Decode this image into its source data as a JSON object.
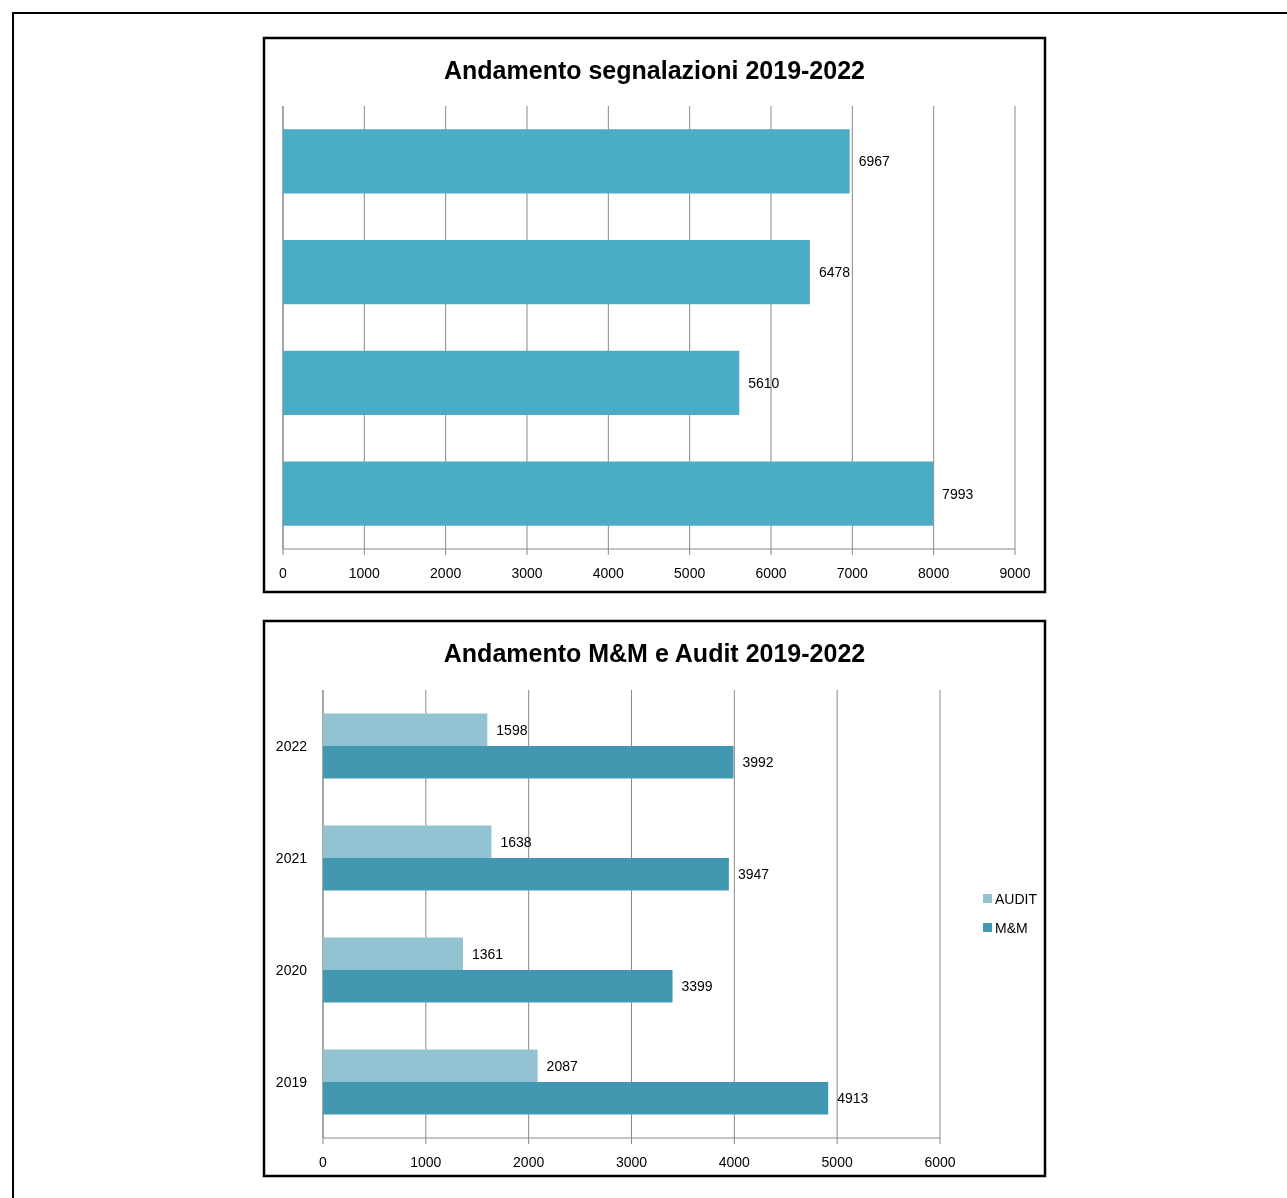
{
  "chart_data": [
    {
      "type": "bar",
      "title": "Andamento segnalazioni 2019-2022",
      "orientation": "horizontal",
      "categories": [
        null,
        null,
        null,
        null
      ],
      "series": [
        {
          "color": "#4bacc6",
          "values": [
            6967,
            6478,
            5610,
            7993
          ]
        }
      ],
      "xlim": [
        0,
        9000
      ],
      "xticks": [
        0,
        1000,
        2000,
        3000,
        4000,
        5000,
        6000,
        7000,
        8000,
        9000
      ],
      "grid": "x",
      "data_labels": true
    },
    {
      "type": "bar",
      "title": "Andamento M&M e Audit 2019-2022",
      "orientation": "horizontal",
      "categories": [
        "2022",
        "2021",
        "2020",
        "2019"
      ],
      "series": [
        {
          "name": "AUDIT",
          "color": "#93c3d3",
          "values": [
            1598,
            1638,
            1361,
            2087
          ]
        },
        {
          "name": "M&M",
          "color": "#4198b0",
          "values": [
            3992,
            3947,
            3399,
            4913
          ]
        }
      ],
      "xlim": [
        0,
        6000
      ],
      "xticks": [
        0,
        1000,
        2000,
        3000,
        4000,
        5000,
        6000
      ],
      "grid": "x",
      "data_labels": true,
      "legend": "right"
    }
  ]
}
